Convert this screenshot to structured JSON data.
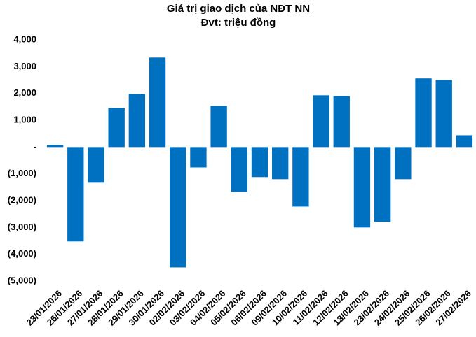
{
  "chart_data": {
    "type": "bar",
    "title": "Giá trị giao dịch của NĐT NN",
    "subtitle": "Đvt: triệu đồng",
    "categories": [
      "23/01/2026",
      "26/01/2026",
      "27/01/2026",
      "28/01/2026",
      "29/01/2026",
      "30/01/2026",
      "02/02/2026",
      "03/02/2026",
      "04/02/2026",
      "05/02/2026",
      "06/02/2026",
      "09/02/2026",
      "10/02/2026",
      "11/02/2026",
      "12/02/2026",
      "13/02/2026",
      "23/02/2026",
      "24/02/2026",
      "25/02/2026",
      "26/02/2026",
      "27/02/2026"
    ],
    "values": [
      80,
      -3520,
      -1330,
      1460,
      1980,
      3340,
      -4490,
      -760,
      1540,
      -1670,
      -1120,
      -1200,
      -2220,
      1930,
      1900,
      -3000,
      -2790,
      -1200,
      2560,
      2500,
      440
    ],
    "color": "#0070c0",
    "ylim": [
      -5000,
      4000
    ],
    "yticks": [
      {
        "value": 4000,
        "label": "4,000"
      },
      {
        "value": 3000,
        "label": "3,000"
      },
      {
        "value": 2000,
        "label": "2,000"
      },
      {
        "value": 1000,
        "label": "1,000"
      },
      {
        "value": 0,
        "label": "-"
      },
      {
        "value": -1000,
        "label": "(1,000)"
      },
      {
        "value": -2000,
        "label": "(2,000)"
      },
      {
        "value": -3000,
        "label": "(3,000)"
      },
      {
        "value": -4000,
        "label": "(4,000)"
      },
      {
        "value": -5000,
        "label": "(5,000)"
      }
    ],
    "grid": false
  }
}
